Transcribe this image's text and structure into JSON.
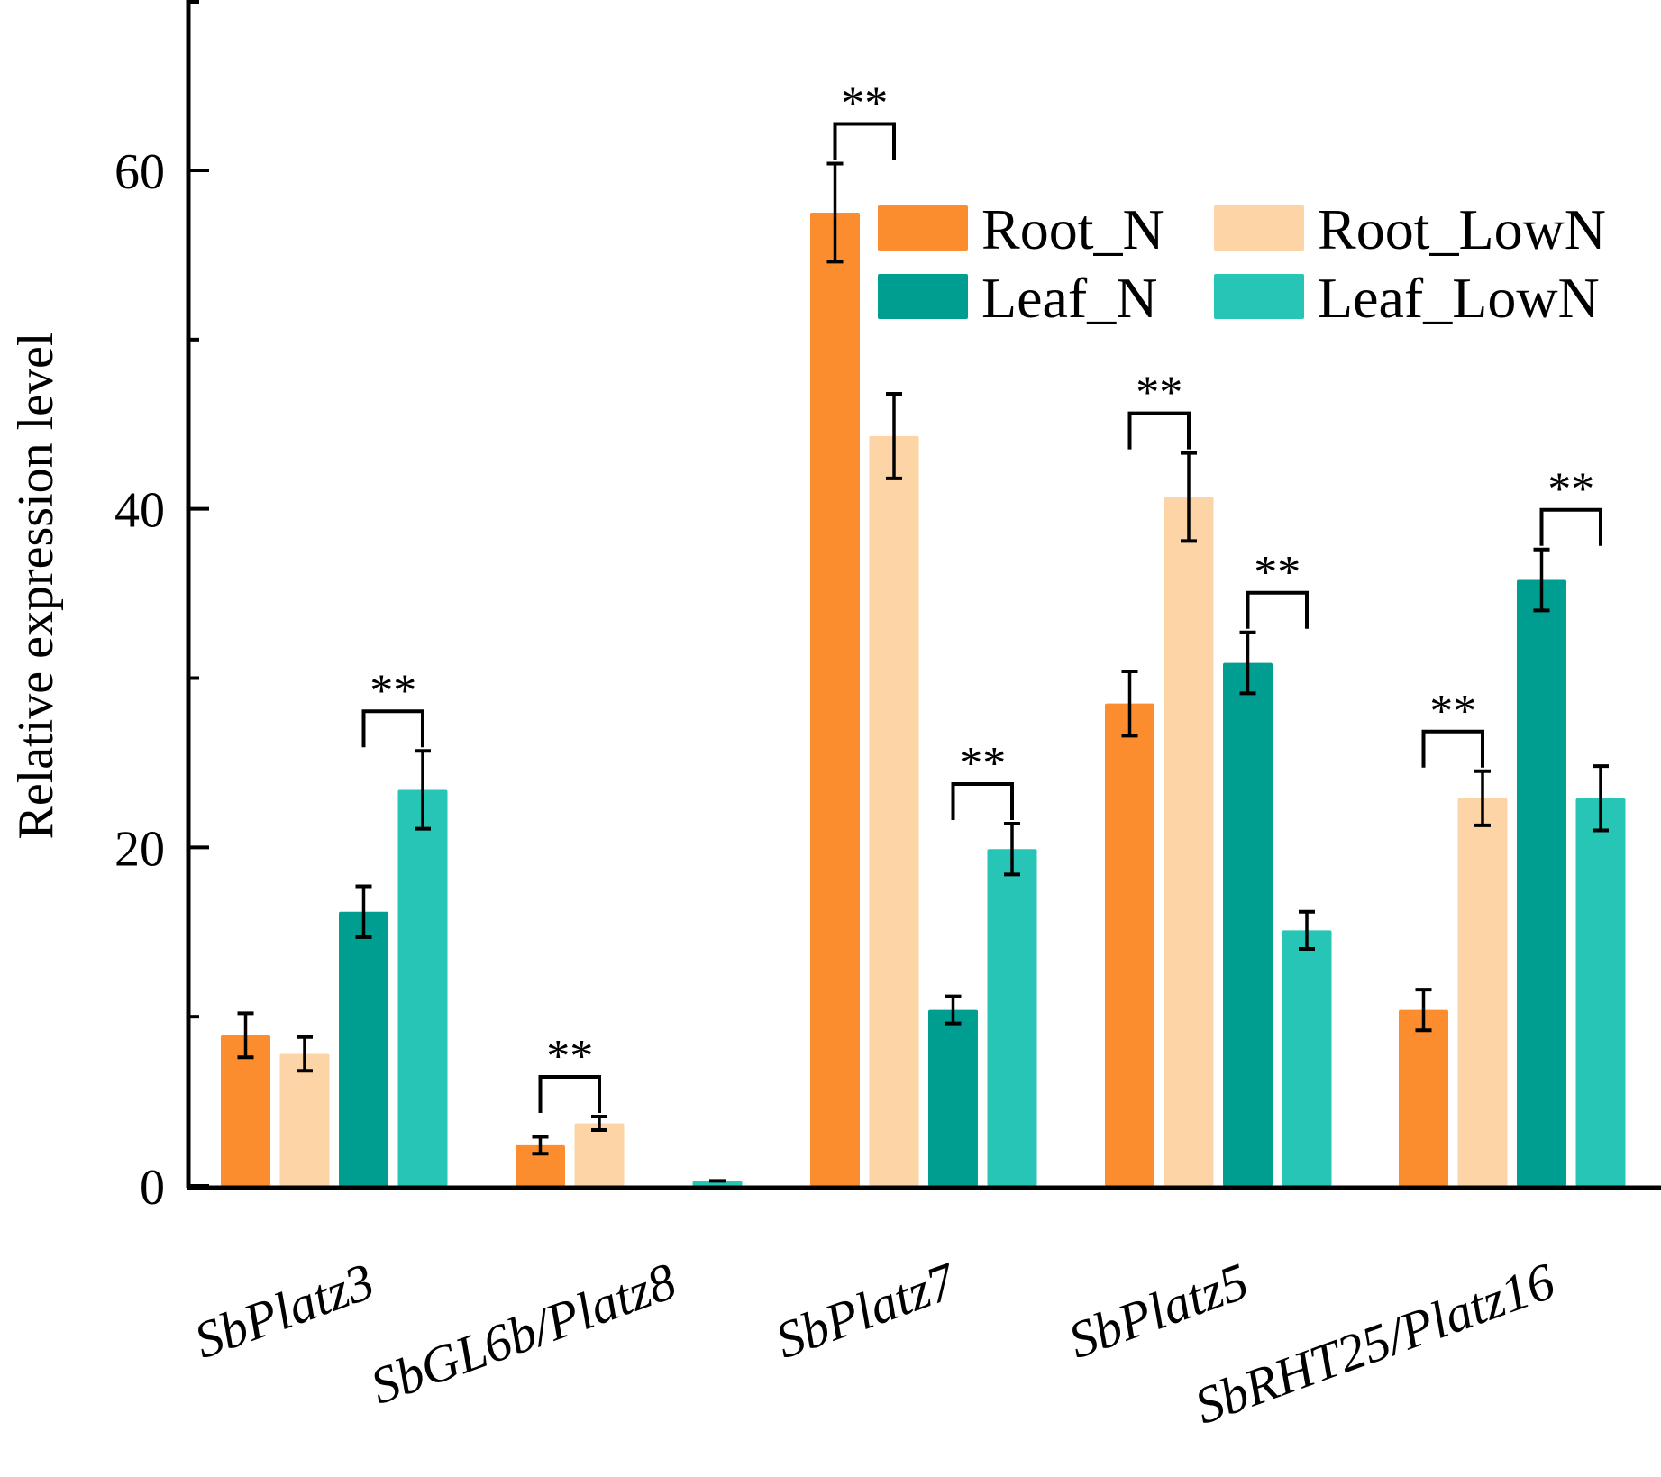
{
  "chart_data": {
    "type": "bar",
    "title": "",
    "xlabel": "",
    "ylabel": "Relative expression level",
    "ylim": [
      0,
      70
    ],
    "yticks_major": [
      0,
      20,
      40,
      60
    ],
    "yticks_minor": [
      10,
      30,
      50
    ],
    "ytick_labels": [
      "0",
      "20",
      "40",
      "60"
    ],
    "grid": false,
    "legend_position": "top-right",
    "categories": [
      "SbPlatz3",
      "SbGL6b/Platz8",
      "SbPlatz7",
      "SbPlatz5",
      "SbRHT25/Platz16"
    ],
    "series": [
      {
        "name": "Root_N",
        "color": "#FB8D2F",
        "values": [
          8.9,
          2.4,
          57.5,
          28.5,
          10.4
        ],
        "errors": [
          1.3,
          0.5,
          2.9,
          1.9,
          1.2
        ]
      },
      {
        "name": "Root_LowN",
        "color": "#FDD4A5",
        "values": [
          7.8,
          3.7,
          44.3,
          40.7,
          22.9
        ],
        "errors": [
          1.0,
          0.4,
          2.5,
          2.6,
          1.6
        ]
      },
      {
        "name": "Leaf_N",
        "color": "#009E91",
        "values": [
          16.2,
          0.0,
          10.4,
          30.9,
          35.8
        ],
        "errors": [
          1.5,
          0.0,
          0.8,
          1.8,
          1.8
        ]
      },
      {
        "name": "Leaf_LowN",
        "color": "#27C5B5",
        "values": [
          23.4,
          0.3,
          19.9,
          15.1,
          22.9
        ],
        "errors": [
          2.3,
          0.0,
          1.5,
          1.1,
          1.9
        ]
      }
    ],
    "significance": [
      {
        "category": "SbPlatz3",
        "from": "Leaf_N",
        "to": "Leaf_LowN",
        "label": "**"
      },
      {
        "category": "SbGL6b/Platz8",
        "from": "Root_N",
        "to": "Root_LowN",
        "label": "**"
      },
      {
        "category": "SbPlatz7",
        "from": "Root_N",
        "to": "Root_LowN",
        "label": "**"
      },
      {
        "category": "SbPlatz7",
        "from": "Leaf_N",
        "to": "Leaf_LowN",
        "label": "**"
      },
      {
        "category": "SbPlatz5",
        "from": "Root_N",
        "to": "Root_LowN",
        "label": "**"
      },
      {
        "category": "SbPlatz5",
        "from": "Leaf_N",
        "to": "Leaf_LowN",
        "label": "**"
      },
      {
        "category": "SbRHT25/Platz16",
        "from": "Root_N",
        "to": "Root_LowN",
        "label": "**"
      },
      {
        "category": "SbRHT25/Platz16",
        "from": "Leaf_N",
        "to": "Leaf_LowN",
        "label": "**"
      }
    ]
  }
}
